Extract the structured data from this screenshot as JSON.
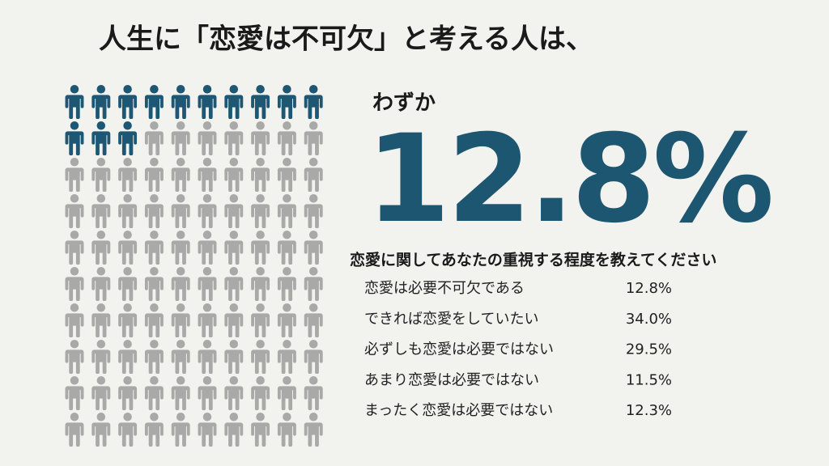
{
  "title": "人生に「恋愛は不可欠」と考える人は、",
  "lead": "わずか",
  "headline": {
    "value": 12.8,
    "label": "12.8%"
  },
  "survey": {
    "question": "恋愛に関してあなたの重視する程度を教えてください",
    "rows": [
      [
        "恋愛は必要不可欠である",
        "12.8%"
      ],
      [
        "できれば恋愛をしていたい",
        "34.0%"
      ],
      [
        "必ずしも恋愛は必要ではない",
        "29.5%"
      ],
      [
        "あまり恋愛は必要ではない",
        "11.5%"
      ],
      [
        "まったく恋愛は必要ではない",
        "12.3%"
      ]
    ]
  }
}
